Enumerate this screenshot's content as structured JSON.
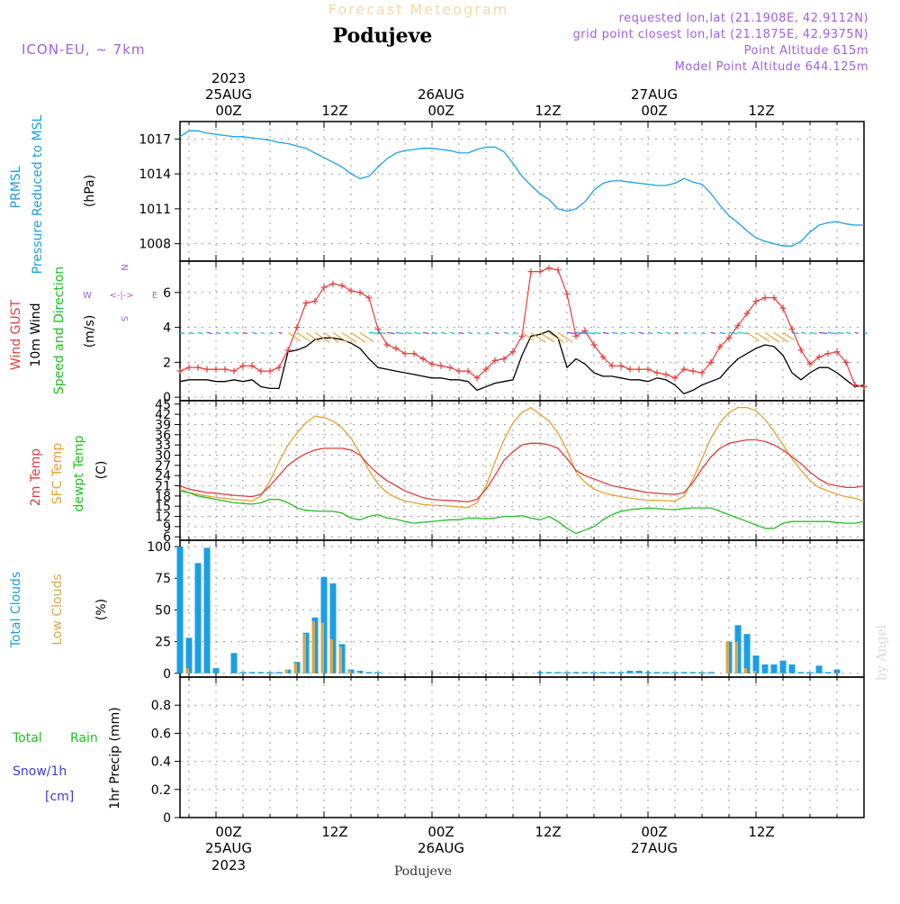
{
  "header": {
    "title": "Forecast Meteogram",
    "location": "Podujeve",
    "model": "ICON-EU, ~ 7km",
    "requested": "requested lon,lat (21.1908E, 42.9112N)",
    "grid_point": "grid point closest lon,lat (21.1875E, 42.9375N)",
    "point_altitude": "Point Altitude 615m",
    "model_altitude": "Model Point Altitude 644.125m"
  },
  "footer": {
    "location": "Podujeve",
    "credit": "by Angel"
  },
  "time_axis": {
    "year": "2023",
    "top_ticks": [
      "00Z",
      "12Z",
      "00Z",
      "12Z",
      "00Z",
      "12Z"
    ],
    "top_dates": [
      "25AUG",
      "26AUG",
      "27AUG"
    ],
    "bottom_ticks": [
      "00Z",
      "12Z",
      "00Z",
      "12Z",
      "00Z",
      "12Z"
    ],
    "bottom_dates": [
      "25AUG",
      "26AUG",
      "27AUG"
    ]
  },
  "panel_labels": {
    "pressure": [
      "PRMSL",
      "Pressure Reduced to MSL",
      "(hPa)"
    ],
    "wind": [
      "Wind GUST",
      "10m Wind",
      "Speed and Direction",
      "(m/s)"
    ],
    "compass": {
      "w": "W",
      "e": "E",
      "n": "N",
      "s": "S"
    },
    "temp": [
      "2m Temp",
      "SFC Temp",
      "dewpt Temp",
      "(C)"
    ],
    "clouds": [
      "Total Clouds",
      "Low Clouds",
      "(%)"
    ],
    "precip": [
      "Total",
      "Rain",
      "Snow/1h",
      "[cm]",
      "1hr Precip (mm)"
    ]
  },
  "colors": {
    "pressure": "#1aa0e8",
    "gust": "#e83c3c",
    "wind": "#000000",
    "t2m": "#e03c3c",
    "tsfc": "#e8a030",
    "dewpt": "#20c020",
    "total_clouds": "#1a9fe6",
    "low_clouds": "#d9a84a",
    "model_label": "#9a4de0",
    "snow_label": "#3c3ce0"
  },
  "chart_data": [
    {
      "type": "line",
      "panel": "pressure",
      "x_hours_from_25aug00z": [
        -4,
        -3,
        -2,
        -1,
        0,
        1,
        2,
        3,
        4,
        5,
        6,
        7,
        8,
        9,
        10,
        11,
        12,
        13,
        14,
        15,
        16,
        17,
        18,
        19,
        20,
        21,
        22,
        23,
        24,
        25,
        26,
        27,
        28,
        29,
        30,
        31,
        32,
        33,
        34,
        35,
        36,
        37,
        38,
        39,
        40,
        41,
        42,
        43,
        44,
        45,
        46,
        47,
        48,
        49,
        50,
        51,
        52,
        53,
        54,
        55,
        56,
        57,
        58,
        59,
        60,
        61,
        62,
        63,
        64,
        65,
        66,
        67,
        68,
        69,
        70,
        71,
        72
      ],
      "series": [
        {
          "values": [
            1017.2,
            1017.7,
            1017.7,
            1017.5,
            1017.4,
            1017.3,
            1017.2,
            1017.2,
            1017.1,
            1017.0,
            1016.9,
            1016.7,
            1016.6,
            1016.4,
            1016.2,
            1015.8,
            1015.4,
            1015.0,
            1014.6,
            1014.0,
            1013.6,
            1013.8,
            1014.6,
            1015.3,
            1015.8,
            1016.0,
            1016.1,
            1016.2,
            1016.2,
            1016.1,
            1016.0,
            1015.8,
            1015.8,
            1016.1,
            1016.3,
            1016.3,
            1015.9,
            1014.9,
            1013.8,
            1013.0,
            1012.3,
            1011.8,
            1011.0,
            1010.8,
            1011.0,
            1011.6,
            1012.6,
            1013.2,
            1013.4,
            1013.4,
            1013.3,
            1013.2,
            1013.1,
            1013.0,
            1013.0,
            1013.2,
            1013.6,
            1013.3,
            1013.1,
            1012.3,
            1011.3,
            1010.4,
            1009.8,
            1009.1,
            1008.5,
            1008.2,
            1008.0,
            1007.8,
            1007.8,
            1008.2,
            1009.0,
            1009.6,
            1009.8,
            1009.9,
            1009.7,
            1009.6,
            1009.6
          ]
        }
      ],
      "y_ticks": [
        1008,
        1011,
        1014,
        1017
      ],
      "ylim": [
        1006.5,
        1018.5
      ],
      "grid": true
    },
    {
      "type": "line",
      "panel": "wind",
      "x_hours_from_25aug00z": [
        -4,
        -3,
        -2,
        -1,
        0,
        1,
        2,
        3,
        4,
        5,
        6,
        7,
        8,
        9,
        10,
        11,
        12,
        13,
        14,
        15,
        16,
        17,
        18,
        19,
        20,
        21,
        22,
        23,
        24,
        25,
        26,
        27,
        28,
        29,
        30,
        31,
        32,
        33,
        34,
        35,
        36,
        37,
        38,
        39,
        40,
        41,
        42,
        43,
        44,
        45,
        46,
        47,
        48,
        49,
        50,
        51,
        52,
        53,
        54,
        55,
        56,
        57,
        58,
        59,
        60,
        61,
        62,
        63,
        64,
        65,
        66,
        67,
        68,
        69,
        70,
        71,
        72
      ],
      "series": [
        {
          "name": "Wind GUST",
          "values": [
            1.5,
            1.7,
            1.7,
            1.6,
            1.6,
            1.6,
            1.5,
            1.8,
            1.8,
            1.5,
            1.5,
            1.7,
            2.7,
            4.0,
            5.4,
            5.5,
            6.3,
            6.5,
            6.4,
            6.1,
            6.0,
            5.7,
            3.9,
            3.0,
            2.8,
            2.5,
            2.5,
            2.2,
            1.9,
            1.8,
            1.7,
            1.5,
            1.5,
            1.1,
            1.6,
            2.1,
            2.2,
            2.6,
            3.5,
            7.2,
            7.2,
            7.4,
            7.3,
            5.9,
            3.5,
            3.8,
            3.0,
            2.3,
            1.8,
            1.8,
            1.6,
            1.6,
            1.6,
            1.4,
            1.3,
            1.1,
            1.6,
            1.5,
            1.4,
            2.0,
            2.9,
            3.4,
            4.1,
            4.8,
            5.5,
            5.7,
            5.7,
            5.1,
            3.9,
            2.7,
            1.9,
            2.3,
            2.5,
            2.6,
            2.0,
            0.7,
            0.6
          ]
        },
        {
          "name": "10m Wind",
          "values": [
            0.9,
            1.0,
            1.0,
            1.0,
            0.9,
            0.9,
            1.0,
            0.9,
            1.0,
            0.6,
            0.5,
            0.5,
            2.6,
            2.7,
            2.9,
            3.3,
            3.4,
            3.4,
            3.3,
            3.1,
            2.8,
            2.2,
            1.7,
            1.6,
            1.5,
            1.4,
            1.3,
            1.2,
            1.1,
            1.1,
            1.0,
            1.0,
            0.9,
            0.4,
            0.6,
            0.8,
            0.9,
            1.0,
            2.4,
            3.5,
            3.6,
            3.8,
            3.4,
            1.7,
            2.2,
            1.9,
            1.4,
            1.2,
            1.2,
            1.1,
            1.0,
            1.0,
            0.9,
            1.1,
            1.0,
            0.7,
            0.2,
            0.4,
            0.7,
            0.9,
            1.1,
            1.7,
            2.2,
            2.5,
            2.8,
            3.0,
            2.9,
            2.4,
            1.4,
            1.0,
            1.4,
            1.7,
            1.7,
            1.4,
            1.0,
            0.6,
            0.7
          ]
        }
      ],
      "y_ticks": [
        0,
        2,
        4,
        6
      ],
      "ylim": [
        -0.2,
        7.8
      ],
      "grid": true
    },
    {
      "type": "line",
      "panel": "temperature",
      "x_hours_from_25aug00z": [
        -4,
        -3,
        -2,
        -1,
        0,
        1,
        2,
        3,
        4,
        5,
        6,
        7,
        8,
        9,
        10,
        11,
        12,
        13,
        14,
        15,
        16,
        17,
        18,
        19,
        20,
        21,
        22,
        23,
        24,
        25,
        26,
        27,
        28,
        29,
        30,
        31,
        32,
        33,
        34,
        35,
        36,
        37,
        38,
        39,
        40,
        41,
        42,
        43,
        44,
        45,
        46,
        47,
        48,
        49,
        50,
        51,
        52,
        53,
        54,
        55,
        56,
        57,
        58,
        59,
        60,
        61,
        62,
        63,
        64,
        65,
        66,
        67,
        68,
        69,
        70,
        71,
        72
      ],
      "series": [
        {
          "name": "2m Temp",
          "values": [
            21,
            20,
            19.5,
            19,
            18.8,
            18.5,
            18.2,
            18,
            17.8,
            18.5,
            21,
            24,
            27,
            29,
            30.5,
            31.5,
            32,
            32,
            32,
            31.5,
            30,
            27,
            24.5,
            22.5,
            21,
            19.5,
            18.5,
            17.5,
            17,
            16.8,
            16.7,
            16.5,
            16.3,
            17,
            20,
            24,
            28.5,
            31,
            33,
            33.5,
            33.5,
            33,
            32,
            29,
            25.5,
            24,
            23,
            22,
            21,
            20.5,
            20,
            19.5,
            19,
            18.8,
            18.6,
            18.5,
            19,
            22,
            26,
            29.5,
            32,
            33.5,
            34,
            34.5,
            34.5,
            34,
            33,
            31.5,
            29.5,
            27.5,
            25,
            23,
            21.5,
            21,
            20.5,
            20.5,
            21
          ]
        },
        {
          "name": "SFC Temp",
          "values": [
            20,
            19,
            18.5,
            18,
            17.6,
            17.3,
            17,
            16.8,
            16.5,
            18,
            22.5,
            28,
            33,
            36.5,
            39.5,
            41.5,
            41,
            40,
            38,
            35,
            30.5,
            25.5,
            21.5,
            19,
            17.5,
            16.5,
            16,
            15.5,
            15.3,
            15.2,
            15,
            14.8,
            14.6,
            16,
            21,
            28,
            34.5,
            39.5,
            42.5,
            44,
            42,
            40,
            36.5,
            31.5,
            25,
            22,
            20,
            19,
            18.3,
            17.8,
            17.4,
            17,
            16.8,
            16.7,
            16.6,
            16.5,
            18,
            23,
            29,
            35,
            39.5,
            42.5,
            44,
            44,
            43,
            40.5,
            37,
            33,
            29,
            25.5,
            22.5,
            20.5,
            19.5,
            18.5,
            17.8,
            17.3,
            16.5
          ]
        },
        {
          "name": "dewpt Temp",
          "values": [
            19.5,
            19,
            18,
            17.5,
            17,
            16.5,
            16,
            15.8,
            15.6,
            16,
            17,
            17,
            16,
            14.5,
            13.8,
            13.6,
            13.5,
            13.5,
            13,
            11.5,
            11,
            12,
            12.5,
            11.5,
            11.2,
            10.5,
            10,
            10.3,
            10.5,
            10.8,
            11,
            11,
            11.5,
            11.5,
            11.3,
            11.5,
            12,
            12,
            12.2,
            11.5,
            11,
            12,
            10.5,
            8.5,
            7,
            8,
            9,
            11,
            12.5,
            13.5,
            14,
            14.2,
            14.5,
            14.3,
            14.1,
            14,
            14.3,
            14.5,
            14.5,
            14.5,
            13.5,
            12.5,
            11.5,
            10.5,
            9.5,
            8.5,
            8.5,
            10,
            10.5,
            10.5,
            10.5,
            10.5,
            10.5,
            10.2,
            10,
            10,
            10.5
          ]
        }
      ],
      "y_ticks": [
        6,
        9,
        12,
        15,
        18,
        21,
        24,
        27,
        30,
        33,
        36,
        39,
        42,
        45
      ],
      "ylim": [
        5,
        46
      ],
      "grid": true
    },
    {
      "type": "bar",
      "panel": "clouds",
      "x_hours_from_25aug00z": [
        -4,
        -3,
        -2,
        -1,
        0,
        1,
        2,
        3,
        4,
        5,
        6,
        7,
        8,
        9,
        10,
        11,
        12,
        13,
        14,
        15,
        16,
        17,
        18,
        19,
        20,
        21,
        22,
        23,
        24,
        25,
        26,
        27,
        28,
        29,
        30,
        31,
        32,
        33,
        34,
        35,
        36,
        37,
        38,
        39,
        40,
        41,
        42,
        43,
        44,
        45,
        46,
        47,
        48,
        49,
        50,
        51,
        52,
        53,
        54,
        55,
        56,
        57,
        58,
        59,
        60,
        61,
        62,
        63,
        64,
        65,
        66,
        67,
        68,
        69,
        70,
        71,
        72
      ],
      "series": [
        {
          "name": "Total Clouds",
          "values": [
            100,
            28,
            87,
            99,
            4,
            0,
            16,
            1,
            1,
            1,
            1,
            1,
            3,
            9,
            32,
            44,
            76,
            71,
            23,
            3,
            2,
            1,
            1,
            0,
            0,
            0,
            0,
            0,
            0,
            0,
            0,
            0,
            0,
            0,
            0,
            0,
            0,
            0,
            0,
            0,
            1,
            1,
            1,
            1,
            1,
            1,
            1,
            1,
            1,
            1,
            2,
            2,
            1,
            1,
            1,
            1,
            1,
            1,
            1,
            1,
            0,
            25,
            38,
            31,
            14,
            7,
            7,
            10,
            7,
            1,
            1,
            6,
            1,
            3,
            0,
            0,
            0
          ]
        },
        {
          "name": "Low Clouds",
          "values": [
            0,
            4,
            0,
            0,
            0,
            0,
            0,
            0,
            0,
            0,
            0,
            0,
            3,
            8,
            31,
            41,
            40,
            27,
            21,
            2,
            1,
            0,
            0,
            0,
            0,
            0,
            0,
            0,
            0,
            0,
            0,
            0,
            0,
            0,
            0,
            0,
            0,
            0,
            0,
            0,
            0,
            0,
            0,
            0,
            0,
            0,
            0,
            0,
            0,
            0,
            0,
            0,
            0,
            0,
            0,
            0,
            0,
            0,
            0,
            0,
            0,
            25,
            25,
            4,
            2,
            0,
            0,
            0,
            0,
            0,
            0,
            0,
            0,
            0,
            0,
            0,
            0
          ]
        }
      ],
      "y_ticks": [
        0,
        25,
        50,
        75,
        100
      ],
      "ylim": [
        -3,
        105
      ],
      "grid": true
    },
    {
      "type": "bar",
      "panel": "precipitation",
      "series": [
        {
          "name": "Total",
          "values": []
        },
        {
          "name": "Rain",
          "values": []
        }
      ],
      "y_ticks": [
        "0",
        "0.2",
        "0.4",
        "0.6",
        "0.8"
      ],
      "ylim": [
        0,
        1.0
      ],
      "grid": true
    }
  ]
}
